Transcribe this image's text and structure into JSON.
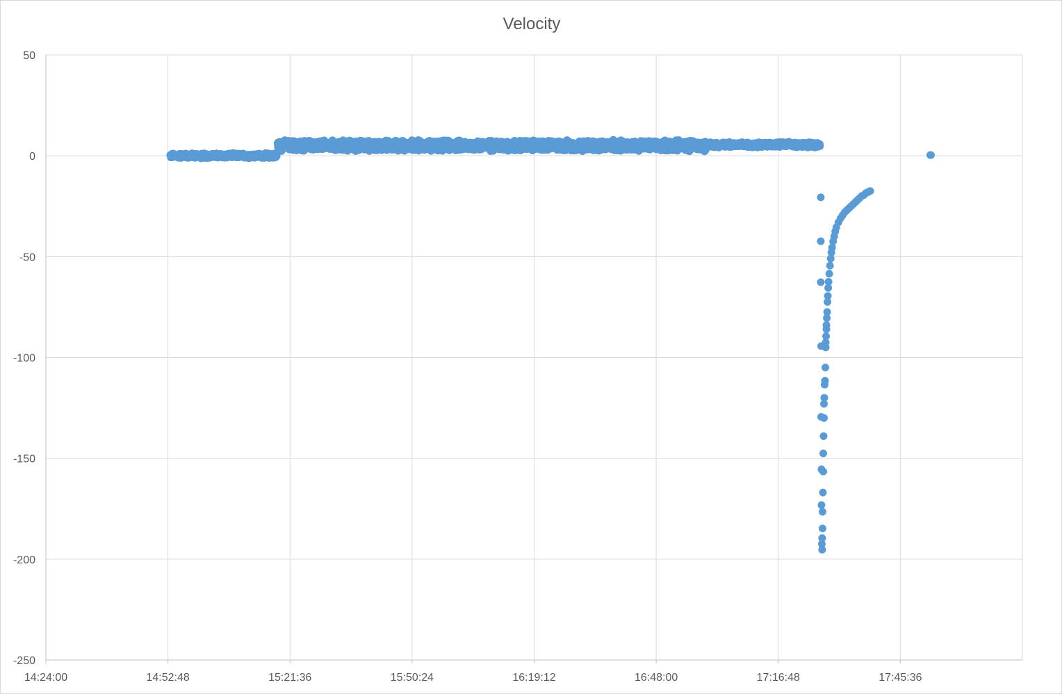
{
  "chart_data": {
    "type": "scatter",
    "title": "Velocity",
    "xlabel": "",
    "ylabel": "",
    "x_format": "time",
    "xlim": [
      "14:24:00",
      "18:14:24"
    ],
    "ylim": [
      -250,
      50
    ],
    "x_tick_interval": "00:28:48",
    "y_tick_interval": 50,
    "x_tick_labels": [
      "14:24:00",
      "14:52:48",
      "15:21:36",
      "15:50:24",
      "16:19:12",
      "16:48:00",
      "17:16:48",
      "17:45:36"
    ],
    "y_tick_labels": [
      "50",
      "0",
      "-50",
      "-100",
      "-150",
      "-200",
      "-250"
    ],
    "grid": true,
    "legend": "none",
    "marker_color": "#5b9bd5",
    "segments": [
      {
        "x_start": "14:53:20",
        "x_end": "15:18:30",
        "y_center": 0.0,
        "jitter": 1.4
      },
      {
        "x_start": "15:18:40",
        "x_end": "17:00:00",
        "y_center": 5.0,
        "jitter": 3.0
      },
      {
        "x_start": "17:00:00",
        "x_end": "17:26:40",
        "y_center": 5.5,
        "jitter": 1.5
      }
    ],
    "points": [
      [
        "17:26:50",
        -20.6
      ],
      [
        "17:26:50",
        -42.4
      ],
      [
        "17:26:50",
        -62.7
      ],
      [
        "17:26:55",
        -94.4
      ],
      [
        "17:26:55",
        -129.5
      ],
      [
        "17:27:00",
        -155.5
      ],
      [
        "17:27:00",
        -173.2
      ],
      [
        "17:27:05",
        -192.5
      ],
      [
        "17:27:10",
        -195.3
      ],
      [
        "17:27:10",
        -189.6
      ],
      [
        "17:27:15",
        -184.8
      ],
      [
        "17:27:15",
        -176.5
      ],
      [
        "17:27:20",
        -167.0
      ],
      [
        "17:27:25",
        -156.6
      ],
      [
        "17:27:25",
        -147.6
      ],
      [
        "17:27:30",
        -139.0
      ],
      [
        "17:27:35",
        -130.0
      ],
      [
        "17:27:35",
        -123.0
      ],
      [
        "17:27:40",
        -120.0
      ],
      [
        "17:27:45",
        -113.5
      ],
      [
        "17:27:50",
        -111.6
      ],
      [
        "17:27:55",
        -105.0
      ],
      [
        "17:28:00",
        -95.0
      ],
      [
        "17:28:00",
        -92.5
      ],
      [
        "17:28:05",
        -89.5
      ],
      [
        "17:28:10",
        -86.0
      ],
      [
        "17:28:10",
        -84.0
      ],
      [
        "17:28:15",
        -80.5
      ],
      [
        "17:28:20",
        -77.5
      ],
      [
        "17:28:25",
        -72.5
      ],
      [
        "17:28:30",
        -69.5
      ],
      [
        "17:28:35",
        -65.5
      ],
      [
        "17:28:40",
        -62.5
      ],
      [
        "17:28:50",
        -58.5
      ],
      [
        "17:29:00",
        -54.5
      ],
      [
        "17:29:10",
        -51.0
      ],
      [
        "17:29:20",
        -48.0
      ],
      [
        "17:29:30",
        -45.5
      ],
      [
        "17:29:45",
        -42.5
      ],
      [
        "17:30:00",
        -40.0
      ],
      [
        "17:30:15",
        -37.5
      ],
      [
        "17:30:30",
        -35.5
      ],
      [
        "17:31:00",
        -33.0
      ],
      [
        "17:31:30",
        -31.0
      ],
      [
        "17:32:00",
        -29.5
      ],
      [
        "17:32:30",
        -28.0
      ],
      [
        "17:33:00",
        -27.0
      ],
      [
        "17:33:30",
        -26.0
      ],
      [
        "17:34:00",
        -25.0
      ],
      [
        "17:34:30",
        -24.0
      ],
      [
        "17:35:00",
        -23.0
      ],
      [
        "17:35:30",
        -22.0
      ],
      [
        "17:36:00",
        -21.0
      ],
      [
        "17:36:30",
        -20.0
      ],
      [
        "17:37:00",
        -19.5
      ],
      [
        "17:37:30",
        -18.5
      ],
      [
        "17:38:00",
        -18.0
      ],
      [
        "17:38:30",
        -17.5
      ],
      [
        "17:52:40",
        0.3
      ],
      [
        "17:52:50",
        0.3
      ]
    ]
  }
}
